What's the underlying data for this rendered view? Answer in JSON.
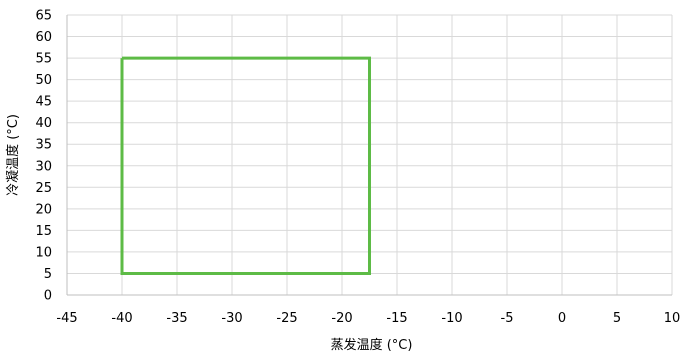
{
  "chart_data": {
    "type": "line",
    "title": "",
    "xlabel": "蒸发温度 (°C)",
    "ylabel": "冷凝温度 (°C)",
    "xlim": [
      -45,
      10
    ],
    "ylim": [
      0,
      65
    ],
    "x_ticks": [
      -45,
      -40,
      -35,
      -30,
      -25,
      -20,
      -15,
      -10,
      -5,
      0,
      5,
      10
    ],
    "y_ticks": [
      0,
      5,
      10,
      15,
      20,
      25,
      30,
      35,
      40,
      45,
      50,
      55,
      60,
      65
    ],
    "grid": true,
    "series": [
      {
        "x": [
          -40,
          -17.5,
          -17.5,
          -40,
          -40
        ],
        "y": [
          55,
          55,
          5,
          5,
          55
        ],
        "color": "#5dbb46"
      }
    ]
  }
}
